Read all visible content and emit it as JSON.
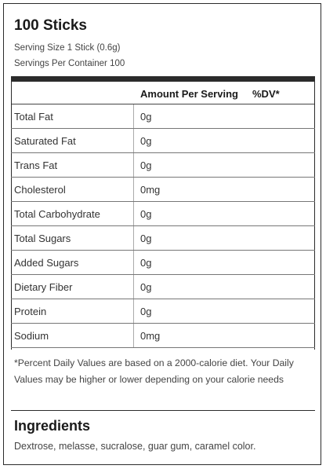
{
  "label": {
    "title": "100 Sticks",
    "serving_size": "Serving Size 1 Stick (0.6g)",
    "servings_per_container": "Servings Per Container 100",
    "header": {
      "amount": "Amount Per Serving",
      "dv": "%DV*"
    },
    "rows": [
      {
        "name": "Total Fat",
        "amount": "0g"
      },
      {
        "name": "Saturated Fat",
        "amount": "0g"
      },
      {
        "name": "Trans Fat",
        "amount": "0g"
      },
      {
        "name": "Cholesterol",
        "amount": "0mg"
      },
      {
        "name": "Total Carbohydrate",
        "amount": "0g"
      },
      {
        "name": "Total Sugars",
        "amount": "0g"
      },
      {
        "name": "Added Sugars",
        "amount": "0g"
      },
      {
        "name": "Dietary Fiber",
        "amount": "0g"
      },
      {
        "name": "Protein",
        "amount": "0g"
      },
      {
        "name": "Sodium",
        "amount": "0mg"
      }
    ],
    "footnote": "*Percent Daily Values are based on a 2000-calorie diet. Your Daily Values may be higher or lower depending on your calorie needs",
    "ingredients_title": "Ingredients",
    "ingredients_text": "Dextrose, melasse, sucralose, guar gum, caramel color."
  }
}
